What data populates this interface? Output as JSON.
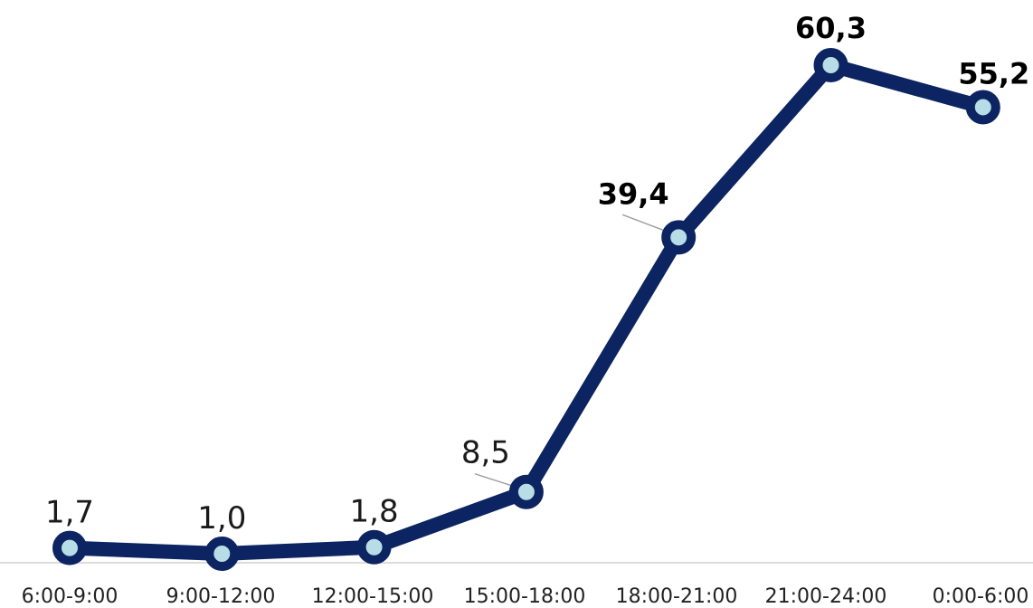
{
  "chart_data": {
    "type": "line",
    "categories": [
      "6:00-9:00",
      "9:00-12:00",
      "12:00-15:00",
      "15:00-18:00",
      "18:00-21:00",
      "21:00-24:00",
      "0:00-6:00"
    ],
    "values": [
      1.7,
      1.0,
      1.8,
      8.5,
      39.4,
      60.3,
      55.2
    ],
    "data_labels": [
      "1,7",
      "1,0",
      "1,8",
      "8,5",
      "39,4",
      "60,3",
      "55,2"
    ],
    "bold_labels": [
      false,
      false,
      false,
      false,
      true,
      true,
      true
    ],
    "ylim": [
      0,
      62
    ],
    "grid": false,
    "legend": "none",
    "colors": {
      "line": "#0c2461",
      "marker_fill": "#b8dde6",
      "axis": "#d0d0d0",
      "leader": "#a0a0a0"
    }
  }
}
